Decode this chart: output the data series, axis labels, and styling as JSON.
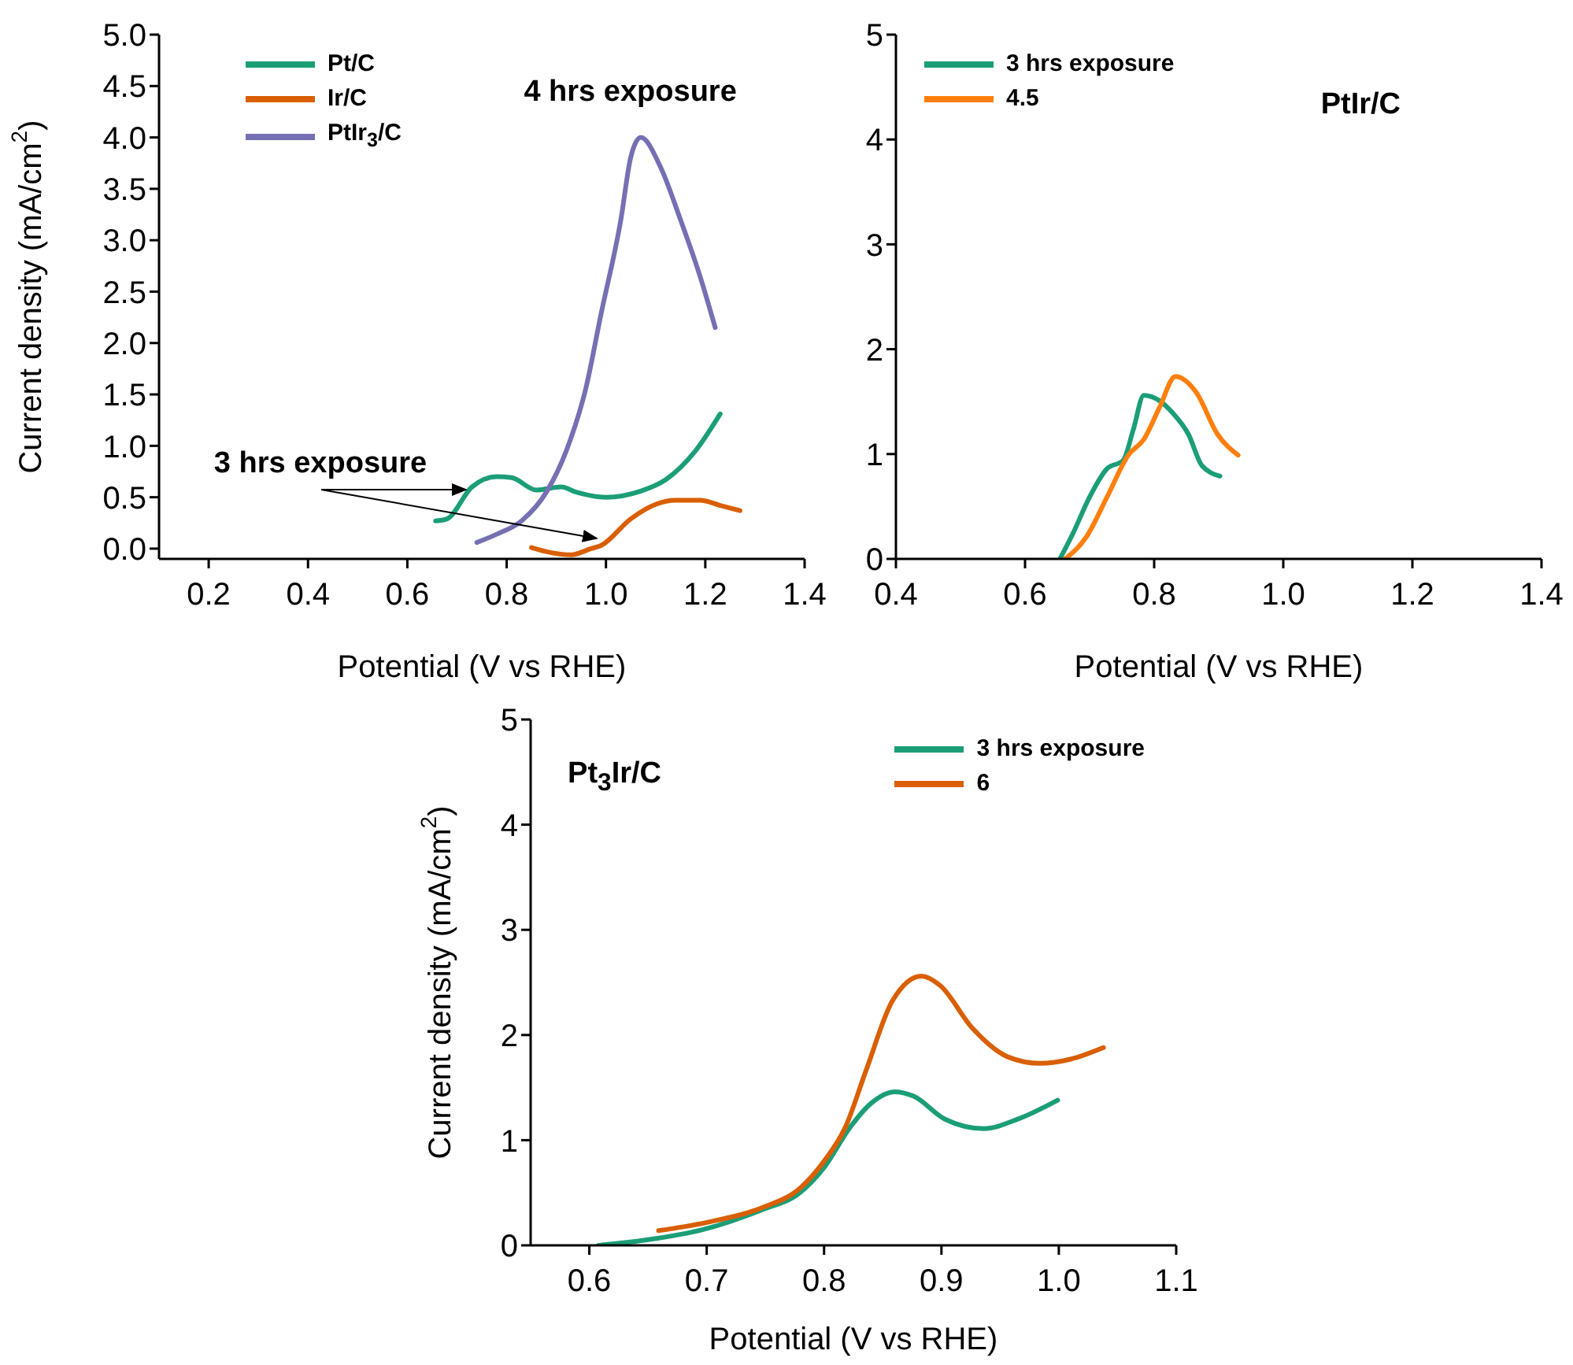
{
  "chart_data": [
    {
      "type": "line",
      "xlabel": "Potential (V vs RHE)",
      "ylabel": "Current density (mA/cm$^{2}$)",
      "xlim": [
        0.1,
        1.4
      ],
      "xticks": [
        {
          "value": 0.2,
          "label": "0.2"
        },
        {
          "value": 0.4,
          "label": "0.4"
        },
        {
          "value": 0.6,
          "label": "0.6"
        },
        {
          "value": 0.8,
          "label": "0.8"
        },
        {
          "value": 1.0,
          "label": "1.0"
        },
        {
          "value": 1.2,
          "label": "1.2"
        },
        {
          "value": 1.4,
          "label": "1.4"
        }
      ],
      "ylim": [
        -0.1,
        5.0
      ],
      "yticks": [
        {
          "value": 0,
          "label": "0.0"
        },
        {
          "value": 0.5,
          "label": "0.5"
        },
        {
          "value": 1,
          "label": "1.0"
        },
        {
          "value": 1.5,
          "label": "1.5"
        },
        {
          "value": 2,
          "label": "2.0"
        },
        {
          "value": 2.5,
          "label": "2.5"
        },
        {
          "value": 3,
          "label": "3.0"
        },
        {
          "value": 3.5,
          "label": "3.5"
        },
        {
          "value": 4,
          "label": "4.0"
        },
        {
          "value": 4.5,
          "label": "4.5"
        },
        {
          "value": 5,
          "label": "5.0"
        }
      ],
      "legend": "top left",
      "grid": false,
      "line_style": "solid",
      "marker": "none",
      "annotations": [
        "4 hrs exposure",
        "3 hrs exposure"
      ],
      "series": [
        {
          "name": "Pt/C",
          "color": "#1b9e77",
          "x": [
            0.657,
            0.68,
            0.73,
            0.78,
            0.81,
            0.86,
            0.91,
            0.94,
            1.0,
            1.07,
            1.12,
            1.18,
            1.23
          ],
          "values": [
            0.27,
            0.29,
            0.6,
            0.7,
            0.69,
            0.57,
            0.6,
            0.55,
            0.5,
            0.56,
            0.67,
            0.95,
            1.31
          ]
        },
        {
          "name": "Ir/C",
          "color": "#d95f02",
          "x": [
            0.85,
            0.89,
            0.93,
            0.97,
            0.99,
            1.05,
            1.1,
            1.14,
            1.19,
            1.23,
            1.27
          ],
          "values": [
            0.01,
            -0.04,
            -0.06,
            0,
            0.03,
            0.29,
            0.43,
            0.47,
            0.47,
            0.42,
            0.37
          ]
        },
        {
          "name": "PtIr$_{3}$/C",
          "color": "#7570b3",
          "x": [
            0.74,
            0.78,
            0.83,
            0.88,
            0.92,
            0.96,
            0.99,
            1.03,
            1.05,
            1.07,
            1.11,
            1.15,
            1.19,
            1.22
          ],
          "values": [
            0.06,
            0.14,
            0.27,
            0.55,
            0.95,
            1.57,
            2.28,
            3.2,
            3.81,
            4.0,
            3.71,
            3.2,
            2.64,
            2.15
          ]
        }
      ]
    },
    {
      "type": "line",
      "xlabel": "Potential (V vs RHE)",
      "xlim": [
        0.4,
        1.4
      ],
      "xticks": [
        {
          "value": 0.4,
          "label": "0.4"
        },
        {
          "value": 0.6,
          "label": "0.6"
        },
        {
          "value": 0.8,
          "label": "0.8"
        },
        {
          "value": 1.0,
          "label": "1.0"
        },
        {
          "value": 1.2,
          "label": "1.2"
        },
        {
          "value": 1.4,
          "label": "1.4"
        }
      ],
      "ylim": [
        0,
        5
      ],
      "yticks": [
        0,
        1,
        2,
        3,
        4,
        5
      ],
      "legend": "top left",
      "grid": false,
      "line_style": "solid",
      "marker": "none",
      "annotations": [
        "PtIr/C"
      ],
      "series": [
        {
          "name": "3 hrs exposure",
          "color": "#1b9e77",
          "x": [
            0.654,
            0.674,
            0.7,
            0.727,
            0.752,
            0.768,
            0.784,
            0.808,
            0.829,
            0.853,
            0.874,
            0.902
          ],
          "values": [
            0,
            0.24,
            0.59,
            0.86,
            0.94,
            1.24,
            1.56,
            1.51,
            1.39,
            1.19,
            0.89,
            0.79
          ]
        },
        {
          "name": "4.5",
          "color": "#ff7f0e",
          "x": [
            0.662,
            0.695,
            0.727,
            0.76,
            0.784,
            0.808,
            0.833,
            0.865,
            0.898,
            0.93
          ],
          "values": [
            0,
            0.21,
            0.59,
            0.99,
            1.14,
            1.44,
            1.74,
            1.59,
            1.19,
            0.99
          ]
        }
      ]
    },
    {
      "type": "line",
      "xlabel": "Potential (V vs RHE)",
      "ylabel": "Current density (mA/cm$^{2}$)",
      "xlim": [
        0.55,
        1.1
      ],
      "xticks": [
        0.6,
        0.7,
        0.8,
        0.9,
        {
          "value": 1.0,
          "label": "1.0"
        },
        1.1
      ],
      "ylim": [
        0,
        5
      ],
      "yticks": [
        0,
        1,
        2,
        3,
        4,
        5
      ],
      "legend": "top right",
      "grid": false,
      "line_style": "solid",
      "marker": "none",
      "annotations": [
        "Pt$_{3}$Ir/C"
      ],
      "series": [
        {
          "name": "3 hrs exposure",
          "color": "#1b9e77",
          "x": [
            0.608,
            0.648,
            0.697,
            0.75,
            0.777,
            0.8,
            0.822,
            0.84,
            0.86,
            0.876,
            0.903,
            0.936,
            0.965,
            0.999
          ],
          "values": [
            0,
            0.05,
            0.15,
            0.35,
            0.48,
            0.74,
            1.12,
            1.35,
            1.46,
            1.42,
            1.2,
            1.11,
            1.2,
            1.38
          ]
        },
        {
          "name": "6",
          "color": "#d95f02",
          "x": [
            0.659,
            0.701,
            0.75,
            0.777,
            0.8,
            0.818,
            0.836,
            0.858,
            0.883,
            0.899,
            0.926,
            0.957,
            0.984,
            1.01,
            1.038
          ],
          "values": [
            0.14,
            0.22,
            0.37,
            0.52,
            0.8,
            1.12,
            1.67,
            2.32,
            2.56,
            2.47,
            2.07,
            1.79,
            1.73,
            1.77,
            1.88
          ]
        }
      ]
    }
  ]
}
